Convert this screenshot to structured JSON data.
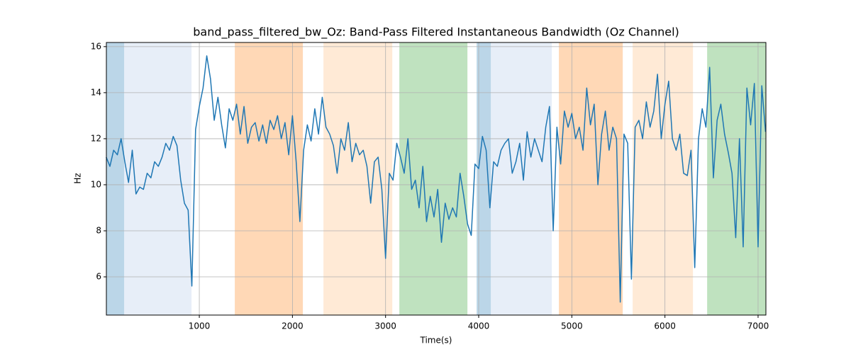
{
  "chart_data": {
    "type": "line",
    "title": "band_pass_filtered_bw_Oz: Band-Pass Filtered Instantaneous Bandwidth (Oz Channel)",
    "xlabel": "Time(s)",
    "ylabel": "Hz",
    "xlim": [
      2,
      7084
    ],
    "ylim": [
      4.34,
      16.18
    ],
    "xticks": [
      1000,
      2000,
      3000,
      4000,
      5000,
      6000,
      7000
    ],
    "yticks": [
      6,
      8,
      10,
      12,
      14,
      16
    ],
    "grid": true,
    "spans": [
      {
        "x": [
          2,
          193
        ],
        "color": "#1f77b4"
      },
      {
        "x": [
          193,
          916
        ],
        "color": "#aec7e8"
      },
      {
        "x": [
          1381,
          2112
        ],
        "color": "#ff7f0e"
      },
      {
        "x": [
          2333,
          3072
        ],
        "color": "#ffbb78"
      },
      {
        "x": [
          3148,
          3879
        ],
        "color": "#2ca02c"
      },
      {
        "x": [
          3978,
          4130
        ],
        "color": "#1f77b4"
      },
      {
        "x": [
          4130,
          4785
        ],
        "color": "#aec7e8"
      },
      {
        "x": [
          4861,
          5547
        ],
        "color": "#ff7f0e"
      },
      {
        "x": [
          5653,
          6301
        ],
        "color": "#ffbb78"
      },
      {
        "x": [
          6453,
          7084
        ],
        "color": "#2ca02c"
      }
    ],
    "x": [
      0,
      40,
      80,
      120,
      160,
      200,
      240,
      280,
      320,
      360,
      400,
      440,
      480,
      520,
      560,
      600,
      640,
      680,
      720,
      760,
      800,
      840,
      880,
      920,
      960,
      1000,
      1040,
      1080,
      1120,
      1160,
      1200,
      1240,
      1280,
      1320,
      1360,
      1400,
      1440,
      1480,
      1520,
      1560,
      1600,
      1640,
      1680,
      1720,
      1760,
      1800,
      1840,
      1880,
      1920,
      1960,
      2000,
      2040,
      2080,
      2120,
      2160,
      2200,
      2240,
      2280,
      2320,
      2360,
      2400,
      2440,
      2480,
      2520,
      2560,
      2600,
      2640,
      2680,
      2720,
      2760,
      2800,
      2840,
      2880,
      2920,
      2960,
      3000,
      3040,
      3080,
      3120,
      3160,
      3200,
      3240,
      3280,
      3320,
      3360,
      3400,
      3440,
      3480,
      3520,
      3560,
      3600,
      3640,
      3680,
      3720,
      3760,
      3800,
      3840,
      3880,
      3920,
      3960,
      4000,
      4040,
      4080,
      4120,
      4160,
      4200,
      4240,
      4280,
      4320,
      4360,
      4400,
      4440,
      4480,
      4520,
      4560,
      4600,
      4640,
      4680,
      4720,
      4760,
      4800,
      4840,
      4880,
      4920,
      4960,
      5000,
      5040,
      5080,
      5120,
      5160,
      5200,
      5240,
      5280,
      5320,
      5360,
      5400,
      5440,
      5480,
      5520,
      5560,
      5600,
      5640,
      5680,
      5720,
      5760,
      5800,
      5840,
      5880,
      5920,
      5960,
      6000,
      6040,
      6080,
      6120,
      6160,
      6200,
      6240,
      6280,
      6320,
      6360,
      6400,
      6440,
      6480,
      6520,
      6560,
      6600,
      6640,
      6680,
      6720,
      6760,
      6800,
      6840,
      6880,
      6920,
      6960,
      7000,
      7040,
      7080
    ],
    "series": [
      {
        "color": "#1f77b4",
        "values": [
          11.2,
          10.8,
          11.5,
          11.3,
          12.0,
          11.0,
          10.1,
          11.5,
          9.6,
          9.9,
          9.8,
          10.5,
          10.3,
          11.0,
          10.8,
          11.2,
          11.8,
          11.5,
          12.1,
          11.7,
          10.2,
          9.2,
          8.9,
          5.6,
          12.4,
          13.4,
          14.2,
          15.6,
          14.6,
          12.8,
          13.8,
          12.6,
          11.6,
          13.3,
          12.8,
          13.5,
          12.2,
          13.4,
          11.8,
          12.5,
          12.7,
          11.9,
          12.6,
          11.8,
          12.8,
          12.4,
          13.0,
          12.0,
          12.7,
          11.3,
          13.0,
          11.0,
          8.4,
          11.5,
          12.6,
          11.9,
          13.3,
          12.2,
          13.8,
          12.5,
          12.2,
          11.7,
          10.5,
          12.0,
          11.5,
          12.7,
          11.0,
          11.8,
          11.3,
          11.5,
          10.8,
          9.2,
          11.0,
          11.2,
          9.8,
          6.8,
          10.5,
          10.2,
          11.8,
          11.2,
          10.5,
          12.0,
          9.8,
          10.2,
          9.0,
          10.8,
          8.4,
          9.5,
          8.6,
          9.8,
          7.5,
          9.2,
          8.5,
          9.0,
          8.6,
          10.5,
          9.5,
          8.3,
          7.8,
          10.9,
          10.7,
          12.1,
          11.5,
          9.0,
          11.0,
          10.8,
          11.5,
          11.8,
          12.0,
          10.5,
          11.0,
          11.8,
          10.2,
          12.3,
          11.2,
          12.0,
          11.5,
          11.0,
          12.5,
          13.4,
          8.0,
          12.5,
          10.9,
          13.2,
          12.5,
          13.1,
          12.0,
          12.5,
          11.5,
          14.2,
          12.6,
          13.5,
          10.0,
          12.2,
          13.2,
          11.5,
          12.5,
          12.0,
          4.9,
          12.2,
          11.8,
          5.9,
          12.5,
          12.8,
          12.0,
          13.6,
          12.5,
          13.2,
          14.8,
          12.0,
          13.5,
          14.5,
          12.0,
          11.5,
          12.2,
          10.5,
          10.4,
          11.5,
          6.4,
          12.0,
          13.3,
          12.5,
          15.1,
          10.3,
          12.8,
          13.5,
          12.2,
          11.4,
          10.5,
          7.7,
          12.0,
          7.3,
          14.2,
          12.6,
          14.4,
          7.3,
          14.3,
          12.3
        ]
      }
    ]
  }
}
